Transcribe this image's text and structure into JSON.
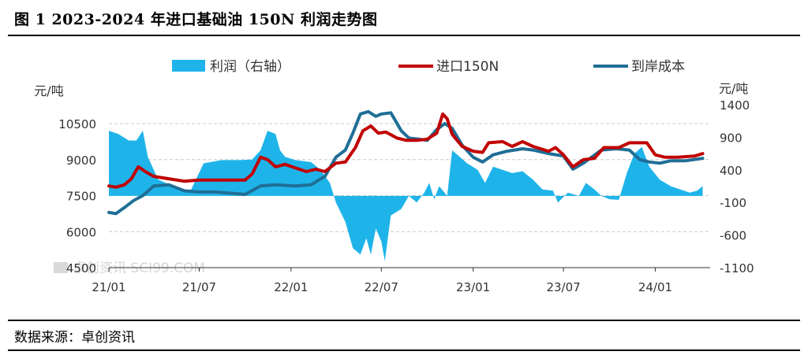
{
  "header": {
    "title": "图 1 2023-2024 年进口基础油 150N 利润走势图"
  },
  "footer": {
    "source": "数据来源：卓创资讯"
  },
  "watermark": "卓创资讯 SCI99.COM",
  "colors": {
    "profit": "#1eb4ea",
    "import150N": "#c00000",
    "landedCost": "#1f6e96",
    "grid": "#c8c8c8"
  },
  "chart_data": {
    "type": "area+line",
    "title": "",
    "legend": {
      "placement": "top",
      "entries": [
        "利润（右轴）",
        "进口150N",
        "到岸成本"
      ]
    },
    "y_left": {
      "unit_label": "元/吨",
      "range": [
        4500,
        10500
      ],
      "ticks": [
        "10500",
        "9000",
        "7500",
        "6000",
        "4500"
      ]
    },
    "y_right": {
      "unit_label": "元/吨",
      "range": [
        -1100,
        1400
      ],
      "ticks": [
        "1400",
        "900",
        "400",
        "-100",
        "-600",
        "-1100"
      ]
    },
    "x_axis": {
      "ticks": [
        "21/01",
        "21/07",
        "22/01",
        "22/07",
        "23/01",
        "23/07",
        "24/01"
      ],
      "range": [
        "2021-01",
        "2024-04"
      ]
    },
    "grid": "horizontal dashed",
    "series": [
      {
        "name": "利润（右轴）",
        "kind": "area",
        "axis": "right",
        "points": [
          [
            "2021-01-01",
            1000
          ],
          [
            "2021-01-20",
            950
          ],
          [
            "2021-02-10",
            850
          ],
          [
            "2021-02-25",
            850
          ],
          [
            "2021-03-10",
            1000
          ],
          [
            "2021-03-20",
            600
          ],
          [
            "2021-04-10",
            250
          ],
          [
            "2021-05-10",
            150
          ],
          [
            "2021-06-01",
            60
          ],
          [
            "2021-06-15",
            100
          ],
          [
            "2021-07-10",
            500
          ],
          [
            "2021-08-15",
            550
          ],
          [
            "2021-09-20",
            550
          ],
          [
            "2021-10-15",
            560
          ],
          [
            "2021-11-01",
            700
          ],
          [
            "2021-11-15",
            1000
          ],
          [
            "2021-12-01",
            950
          ],
          [
            "2021-12-10",
            700
          ],
          [
            "2021-12-20",
            600
          ],
          [
            "2022-01-10",
            550
          ],
          [
            "2022-02-10",
            520
          ],
          [
            "2022-03-01",
            400
          ],
          [
            "2022-03-20",
            200
          ],
          [
            "2022-04-01",
            -100
          ],
          [
            "2022-04-20",
            -400
          ],
          [
            "2022-05-05",
            -800
          ],
          [
            "2022-05-20",
            -900
          ],
          [
            "2022-06-01",
            -650
          ],
          [
            "2022-06-10",
            -900
          ],
          [
            "2022-06-20",
            -500
          ],
          [
            "2022-07-01",
            -700
          ],
          [
            "2022-07-08",
            -1000
          ],
          [
            "2022-07-20",
            -300
          ],
          [
            "2022-08-10",
            -200
          ],
          [
            "2022-08-25",
            0
          ],
          [
            "2022-09-10",
            -100
          ],
          [
            "2022-09-25",
            50
          ],
          [
            "2022-10-05",
            200
          ],
          [
            "2022-10-15",
            -50
          ],
          [
            "2022-10-25",
            150
          ],
          [
            "2022-11-10",
            0
          ],
          [
            "2022-11-20",
            700
          ],
          [
            "2022-12-05",
            600
          ],
          [
            "2022-12-20",
            500
          ],
          [
            "2023-01-10",
            400
          ],
          [
            "2023-01-25",
            200
          ],
          [
            "2023-02-10",
            450
          ],
          [
            "2023-03-01",
            400
          ],
          [
            "2023-03-20",
            350
          ],
          [
            "2023-04-10",
            380
          ],
          [
            "2023-05-01",
            250
          ],
          [
            "2023-05-20",
            100
          ],
          [
            "2023-06-10",
            80
          ],
          [
            "2023-06-20",
            -100
          ],
          [
            "2023-07-10",
            50
          ],
          [
            "2023-08-01",
            0
          ],
          [
            "2023-08-15",
            200
          ],
          [
            "2023-09-01",
            100
          ],
          [
            "2023-09-15",
            0
          ],
          [
            "2023-10-01",
            -50
          ],
          [
            "2023-10-20",
            -60
          ],
          [
            "2023-11-05",
            350
          ],
          [
            "2023-11-20",
            650
          ],
          [
            "2023-12-05",
            750
          ],
          [
            "2023-12-20",
            450
          ],
          [
            "2024-01-10",
            250
          ],
          [
            "2024-02-01",
            150
          ],
          [
            "2024-02-20",
            100
          ],
          [
            "2024-03-10",
            50
          ],
          [
            "2024-03-25",
            80
          ],
          [
            "2024-04-05",
            150
          ]
        ]
      },
      {
        "name": "进口150N",
        "kind": "line",
        "axis": "left",
        "points": [
          [
            "2021-01-01",
            7900
          ],
          [
            "2021-01-15",
            7850
          ],
          [
            "2021-02-01",
            7950
          ],
          [
            "2021-02-15",
            8200
          ],
          [
            "2021-03-01",
            8700
          ],
          [
            "2021-03-15",
            8500
          ],
          [
            "2021-04-01",
            8300
          ],
          [
            "2021-05-01",
            8200
          ],
          [
            "2021-06-01",
            8100
          ],
          [
            "2021-07-01",
            8150
          ],
          [
            "2021-08-01",
            8150
          ],
          [
            "2021-09-01",
            8150
          ],
          [
            "2021-10-01",
            8150
          ],
          [
            "2021-10-15",
            8400
          ],
          [
            "2021-11-01",
            9100
          ],
          [
            "2021-11-15",
            9000
          ],
          [
            "2021-12-01",
            8700
          ],
          [
            "2021-12-20",
            8800
          ],
          [
            "2022-01-10",
            8650
          ],
          [
            "2022-02-01",
            8500
          ],
          [
            "2022-02-20",
            8600
          ],
          [
            "2022-03-10",
            8500
          ],
          [
            "2022-04-01",
            8850
          ],
          [
            "2022-04-20",
            8900
          ],
          [
            "2022-05-10",
            9500
          ],
          [
            "2022-05-25",
            10200
          ],
          [
            "2022-06-10",
            10400
          ],
          [
            "2022-06-25",
            10100
          ],
          [
            "2022-07-10",
            10150
          ],
          [
            "2022-08-01",
            9900
          ],
          [
            "2022-08-20",
            9800
          ],
          [
            "2022-09-10",
            9800
          ],
          [
            "2022-10-01",
            9850
          ],
          [
            "2022-10-20",
            10100
          ],
          [
            "2022-11-01",
            10900
          ],
          [
            "2022-11-10",
            10700
          ],
          [
            "2022-11-20",
            10050
          ],
          [
            "2022-12-10",
            9550
          ],
          [
            "2023-01-01",
            9350
          ],
          [
            "2023-01-20",
            9300
          ],
          [
            "2023-02-01",
            9700
          ],
          [
            "2023-03-01",
            9750
          ],
          [
            "2023-03-20",
            9550
          ],
          [
            "2023-04-10",
            9750
          ],
          [
            "2023-05-01",
            9550
          ],
          [
            "2023-06-01",
            9350
          ],
          [
            "2023-06-15",
            9500
          ],
          [
            "2023-07-01",
            9200
          ],
          [
            "2023-07-20",
            8700
          ],
          [
            "2023-08-10",
            9000
          ],
          [
            "2023-09-01",
            9050
          ],
          [
            "2023-09-20",
            9500
          ],
          [
            "2023-10-20",
            9500
          ],
          [
            "2023-11-10",
            9700
          ],
          [
            "2023-12-01",
            9700
          ],
          [
            "2023-12-15",
            9700
          ],
          [
            "2024-01-01",
            9200
          ],
          [
            "2024-01-20",
            9100
          ],
          [
            "2024-02-15",
            9100
          ],
          [
            "2024-03-20",
            9150
          ],
          [
            "2024-04-05",
            9250
          ]
        ]
      },
      {
        "name": "到岸成本",
        "kind": "line",
        "axis": "left",
        "points": [
          [
            "2021-01-01",
            6800
          ],
          [
            "2021-01-15",
            6750
          ],
          [
            "2021-02-01",
            7000
          ],
          [
            "2021-02-20",
            7300
          ],
          [
            "2021-03-10",
            7500
          ],
          [
            "2021-04-01",
            7900
          ],
          [
            "2021-05-01",
            7950
          ],
          [
            "2021-06-01",
            7700
          ],
          [
            "2021-07-01",
            7650
          ],
          [
            "2021-08-01",
            7650
          ],
          [
            "2021-09-01",
            7600
          ],
          [
            "2021-10-01",
            7550
          ],
          [
            "2021-11-01",
            7900
          ],
          [
            "2021-12-01",
            7950
          ],
          [
            "2022-01-10",
            7900
          ],
          [
            "2022-02-10",
            7950
          ],
          [
            "2022-03-10",
            8300
          ],
          [
            "2022-04-01",
            9100
          ],
          [
            "2022-04-20",
            9400
          ],
          [
            "2022-05-05",
            10100
          ],
          [
            "2022-05-20",
            10900
          ],
          [
            "2022-06-05",
            11000
          ],
          [
            "2022-06-20",
            10800
          ],
          [
            "2022-07-01",
            10900
          ],
          [
            "2022-07-20",
            10950
          ],
          [
            "2022-08-10",
            10200
          ],
          [
            "2022-08-25",
            9900
          ],
          [
            "2022-09-15",
            9850
          ],
          [
            "2022-10-01",
            9800
          ],
          [
            "2022-10-20",
            10250
          ],
          [
            "2022-11-05",
            10500
          ],
          [
            "2022-11-20",
            10300
          ],
          [
            "2022-12-10",
            9600
          ],
          [
            "2023-01-01",
            9100
          ],
          [
            "2023-01-20",
            8900
          ],
          [
            "2023-02-10",
            9200
          ],
          [
            "2023-03-10",
            9350
          ],
          [
            "2023-04-10",
            9450
          ],
          [
            "2023-05-01",
            9400
          ],
          [
            "2023-06-01",
            9250
          ],
          [
            "2023-07-01",
            9150
          ],
          [
            "2023-07-20",
            8600
          ],
          [
            "2023-08-10",
            8850
          ],
          [
            "2023-09-15",
            9400
          ],
          [
            "2023-10-15",
            9450
          ],
          [
            "2023-11-10",
            9400
          ],
          [
            "2023-12-01",
            9000
          ],
          [
            "2023-12-20",
            8900
          ],
          [
            "2024-01-10",
            8850
          ],
          [
            "2024-02-01",
            8950
          ],
          [
            "2024-03-01",
            8950
          ],
          [
            "2024-04-05",
            9050
          ]
        ]
      }
    ]
  }
}
